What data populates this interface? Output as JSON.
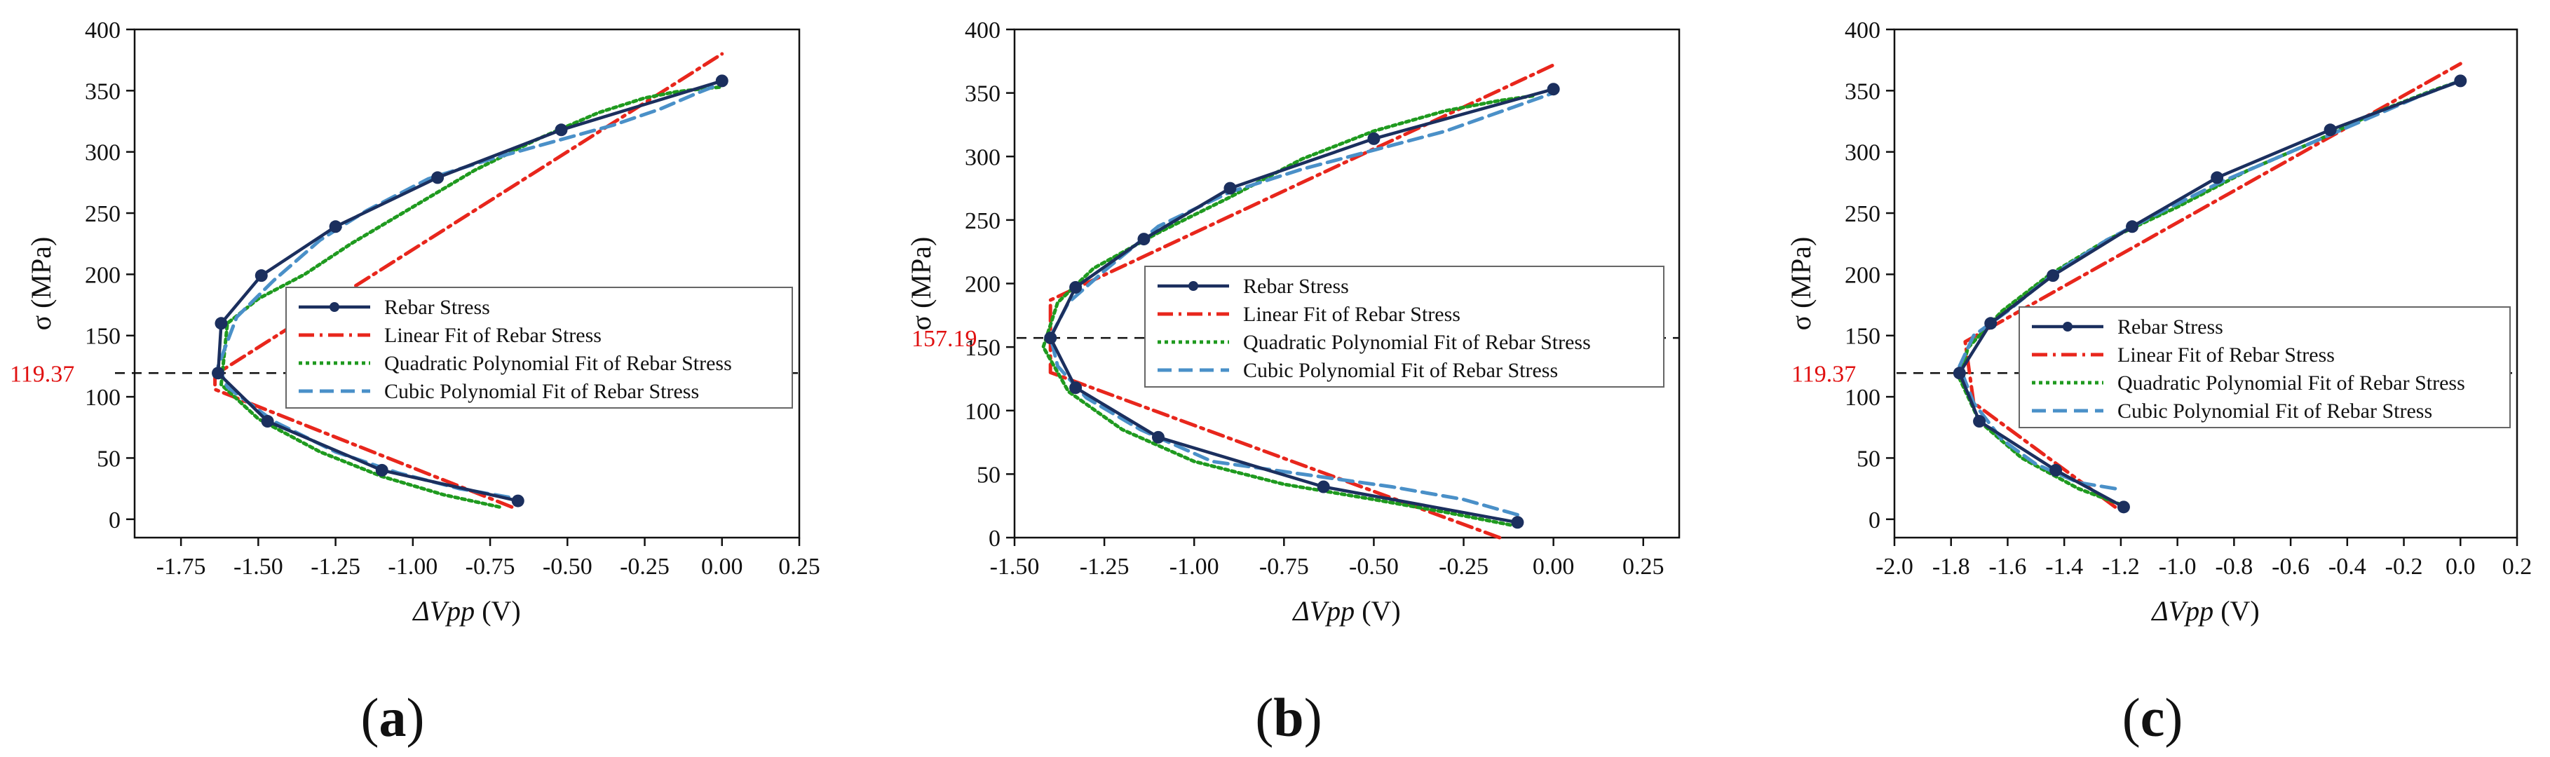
{
  "colors": {
    "rebar": "#1b2f5e",
    "linear": "#e8261c",
    "quadratic": "#1f9a1f",
    "cubic": "#4a90c8",
    "threshold_label": "#e01010"
  },
  "chart_data": [
    {
      "type": "line",
      "panel_label": "(a)",
      "xlabel": "ΔVpp (V)",
      "ylabel": "σ (MPa)",
      "xlim": [
        -1.9,
        0.25
      ],
      "ylim": [
        -15,
        400
      ],
      "xticks": [
        -1.75,
        -1.5,
        -1.25,
        -1.0,
        -0.75,
        -0.5,
        -0.25,
        0.0,
        0.25
      ],
      "xtick_labels": [
        "-1.75",
        "-1.50",
        "-1.25",
        "-1.00",
        "-0.75",
        "-0.50",
        "-0.25",
        "0.00",
        "0.25"
      ],
      "yticks": [
        0,
        50,
        100,
        150,
        200,
        250,
        300,
        350,
        400
      ],
      "ytick_labels": [
        "0",
        "50",
        "100",
        "150",
        "200",
        "250",
        "300",
        "350",
        "400"
      ],
      "threshold": {
        "value": 119.37,
        "label": "119.37"
      },
      "legend": {
        "position": "middle-left"
      },
      "series": [
        {
          "name": "Rebar Stress",
          "style": "solid-marker",
          "x": [
            -0.66,
            -1.1,
            -1.47,
            -1.63,
            -1.62,
            -1.49,
            -1.25,
            -0.92,
            -0.52,
            0.0
          ],
          "y": [
            15,
            40,
            80,
            119.37,
            160,
            199,
            239,
            279,
            318,
            358
          ]
        },
        {
          "name": "Linear Fit of Rebar Stress",
          "style": "dashdot",
          "x": [
            -0.68,
            -1.64,
            -1.64,
            0.0
          ],
          "y": [
            10,
            106,
            118,
            380
          ]
        },
        {
          "name": "Quadratic Polynomial Fit of Rebar Stress",
          "style": "dotted",
          "x": [
            -0.72,
            -0.9,
            -1.1,
            -1.3,
            -1.5,
            -1.62,
            -1.6,
            -1.5,
            -1.35,
            -1.2,
            -1.0,
            -0.8,
            -0.6,
            -0.4,
            -0.25,
            -0.15,
            -0.05,
            0.0
          ],
          "y": [
            10,
            20,
            35,
            55,
            82,
            110,
            160,
            180,
            200,
            225,
            255,
            285,
            310,
            332,
            344,
            349,
            352,
            353
          ]
        },
        {
          "name": "Cubic Polynomial Fit of Rebar Stress",
          "style": "dashed",
          "x": [
            -0.69,
            -0.85,
            -1.05,
            -1.25,
            -1.45,
            -1.6,
            -1.63,
            -1.57,
            -1.45,
            -1.3,
            -1.15,
            -0.95,
            -0.75,
            -0.55,
            -0.35,
            -0.2,
            -0.08,
            0.0
          ],
          "y": [
            18,
            25,
            38,
            55,
            80,
            108,
            125,
            165,
            195,
            228,
            252,
            278,
            294,
            308,
            322,
            335,
            348,
            356
          ]
        }
      ]
    },
    {
      "type": "line",
      "panel_label": "(b)",
      "xlabel": "ΔVpp (V)",
      "ylabel": "σ (MPa)",
      "xlim": [
        -1.5,
        0.35
      ],
      "ylim": [
        0,
        400
      ],
      "xticks": [
        -1.5,
        -1.25,
        -1.0,
        -0.75,
        -0.5,
        -0.25,
        0.0,
        0.25
      ],
      "xtick_labels": [
        "-1.50",
        "-1.25",
        "-1.00",
        "-0.75",
        "-0.50",
        "-0.25",
        "0.00",
        "0.25"
      ],
      "yticks": [
        0,
        50,
        100,
        150,
        200,
        250,
        300,
        350,
        400
      ],
      "ytick_labels": [
        "0",
        "50",
        "100",
        "150",
        "200",
        "250",
        "300",
        "350",
        "400"
      ],
      "threshold": {
        "value": 157.19,
        "label": "157.19"
      },
      "legend": {
        "position": "center-right"
      },
      "series": [
        {
          "name": "Rebar Stress",
          "style": "solid-marker",
          "x": [
            -0.1,
            -0.64,
            -1.1,
            -1.33,
            -1.4,
            -1.33,
            -1.14,
            -0.9,
            -0.5,
            0.0
          ],
          "y": [
            12,
            40,
            79,
            118,
            157.19,
            197,
            235,
            275,
            314,
            353
          ]
        },
        {
          "name": "Linear Fit of Rebar Stress",
          "style": "dashdot",
          "x": [
            -0.15,
            -1.4,
            -1.4,
            0.0
          ],
          "y": [
            0,
            130,
            187,
            372
          ]
        },
        {
          "name": "Quadratic Polynomial Fit of Rebar Stress",
          "style": "dotted",
          "x": [
            -0.12,
            -0.3,
            -0.5,
            -0.75,
            -1.0,
            -1.2,
            -1.35,
            -1.42,
            -1.38,
            -1.28,
            -1.1,
            -0.9,
            -0.7,
            -0.5,
            -0.3,
            -0.15,
            -0.05
          ],
          "y": [
            10,
            20,
            30,
            42,
            60,
            85,
            115,
            150,
            185,
            212,
            240,
            268,
            298,
            320,
            336,
            344,
            348
          ]
        },
        {
          "name": "Cubic Polynomial Fit of Rebar Stress",
          "style": "dashed",
          "x": [
            -0.1,
            -0.25,
            -0.45,
            -0.7,
            -0.95,
            -1.15,
            -1.3,
            -1.38,
            -1.4,
            -1.35,
            -1.25,
            -1.1,
            -0.9,
            -0.7,
            -0.5,
            -0.3,
            -0.12,
            0.0
          ],
          "y": [
            18,
            30,
            40,
            50,
            60,
            85,
            110,
            135,
            158,
            185,
            210,
            245,
            272,
            290,
            305,
            320,
            338,
            350
          ]
        }
      ]
    },
    {
      "type": "line",
      "panel_label": "(c)",
      "xlabel": "ΔVpp (V)",
      "ylabel": "σ (MPa)",
      "xlim": [
        -2.0,
        0.2
      ],
      "ylim": [
        -15,
        400
      ],
      "xticks": [
        -2.0,
        -1.8,
        -1.6,
        -1.4,
        -1.2,
        -1.0,
        -0.8,
        -0.6,
        -0.4,
        -0.2,
        0.0,
        0.2
      ],
      "xtick_labels": [
        "-2.0",
        "-1.8",
        "-1.6",
        "-1.4",
        "-1.2",
        "-1.0",
        "-0.8",
        "-0.6",
        "-0.4",
        "-0.2",
        "0.0",
        "0.2"
      ],
      "yticks": [
        0,
        50,
        100,
        150,
        200,
        250,
        300,
        350,
        400
      ],
      "ytick_labels": [
        "0",
        "50",
        "100",
        "150",
        "200",
        "250",
        "300",
        "350",
        "400"
      ],
      "threshold": {
        "value": 119.37,
        "label": "119.37"
      },
      "legend": {
        "position": "middle-left"
      },
      "series": [
        {
          "name": "Rebar Stress",
          "style": "solid-marker",
          "x": [
            -1.19,
            -1.43,
            -1.7,
            -1.77,
            -1.66,
            -1.44,
            -1.16,
            -0.86,
            -0.46,
            0.0
          ],
          "y": [
            10,
            40,
            80,
            119.37,
            160,
            199,
            239,
            279,
            318,
            358
          ]
        },
        {
          "name": "Linear Fit of Rebar Stress",
          "style": "dashdot",
          "x": [
            -1.22,
            -1.72,
            -1.75,
            0.0
          ],
          "y": [
            10,
            95,
            145,
            372
          ]
        },
        {
          "name": "Quadratic Polynomial Fit of Rebar Stress",
          "style": "dotted",
          "x": [
            -1.2,
            -1.35,
            -1.55,
            -1.7,
            -1.77,
            -1.74,
            -1.62,
            -1.45,
            -1.25,
            -1.0,
            -0.75,
            -0.5,
            -0.3,
            -0.1,
            0.0
          ],
          "y": [
            12,
            25,
            50,
            80,
            115,
            140,
            170,
            200,
            228,
            255,
            285,
            310,
            332,
            350,
            358
          ]
        },
        {
          "name": "Cubic Polynomial Fit of Rebar Stress",
          "style": "dashed",
          "x": [
            -1.22,
            -1.35,
            -1.5,
            -1.62,
            -1.72,
            -1.77,
            -1.72,
            -1.6,
            -1.44,
            -1.25,
            -1.05,
            -0.85,
            -0.6,
            -0.35,
            -0.15,
            0.0
          ],
          "y": [
            25,
            30,
            45,
            65,
            95,
            125,
            150,
            170,
            200,
            228,
            252,
            275,
            300,
            325,
            345,
            358
          ]
        }
      ]
    }
  ]
}
